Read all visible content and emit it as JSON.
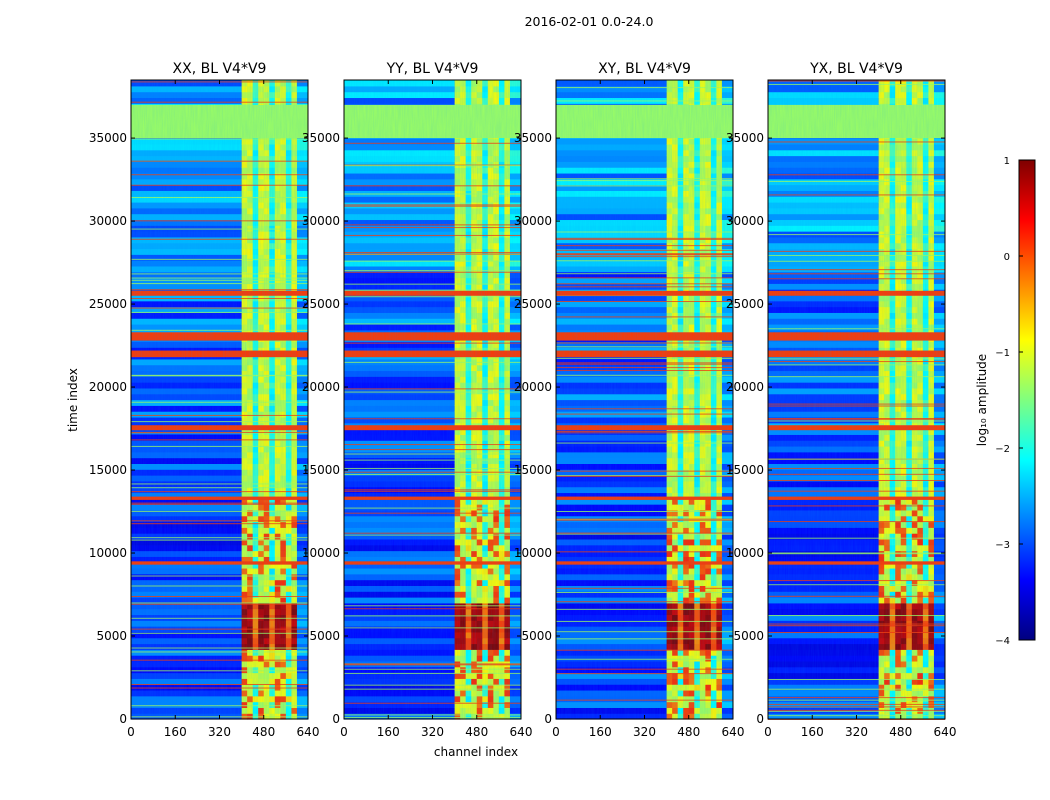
{
  "chart_data": {
    "type": "heatmap",
    "suptitle": "2016-02-01 0.0-24.0",
    "panels": [
      {
        "title": "XX, BL V4*V9",
        "pol": "XX",
        "baseline": "V4*V9",
        "show_ylabel": true
      },
      {
        "title": "YY, BL V4*V9",
        "pol": "YY",
        "baseline": "V4*V9",
        "show_ylabel": false
      },
      {
        "title": "XY, BL V4*V9",
        "pol": "XY",
        "baseline": "V4*V9",
        "show_ylabel": false
      },
      {
        "title": "YX, BL V4*V9",
        "pol": "YX",
        "baseline": "V4*V9",
        "show_ylabel": false
      }
    ],
    "xlabel": "channel index",
    "ylabel": "time index",
    "xlim": [
      0,
      640
    ],
    "ylim": [
      0,
      38500
    ],
    "xticks": [
      0,
      160,
      320,
      480,
      640
    ],
    "xtick_labels": [
      "0",
      "160",
      "320",
      "480",
      "640"
    ],
    "yticks": [
      0,
      5000,
      10000,
      15000,
      20000,
      25000,
      30000,
      35000
    ],
    "ytick_labels": [
      "0",
      "5000",
      "10000",
      "15000",
      "20000",
      "25000",
      "30000",
      "35000"
    ],
    "colorbar": {
      "label": "log₁₀ amplitude",
      "range": [
        -4,
        1
      ],
      "ticks": [
        1,
        0,
        -1,
        -2,
        -3,
        -4
      ],
      "tick_labels": [
        "1",
        "0",
        "−1",
        "−2",
        "−3",
        "−4"
      ],
      "colormap": "jet"
    },
    "features": {
      "bright_channel_band": [
        400,
        600
      ],
      "strong_time_band": [
        4000,
        7000
      ],
      "flagged_time_blocks": [
        [
          35000,
          37000
        ]
      ],
      "rfi_time_bands": [
        [
          21800,
          22200
        ],
        [
          22800,
          23300
        ],
        [
          25500,
          25800
        ],
        [
          17400,
          17700
        ],
        [
          9300,
          9500
        ],
        [
          13200,
          13400
        ]
      ]
    }
  }
}
